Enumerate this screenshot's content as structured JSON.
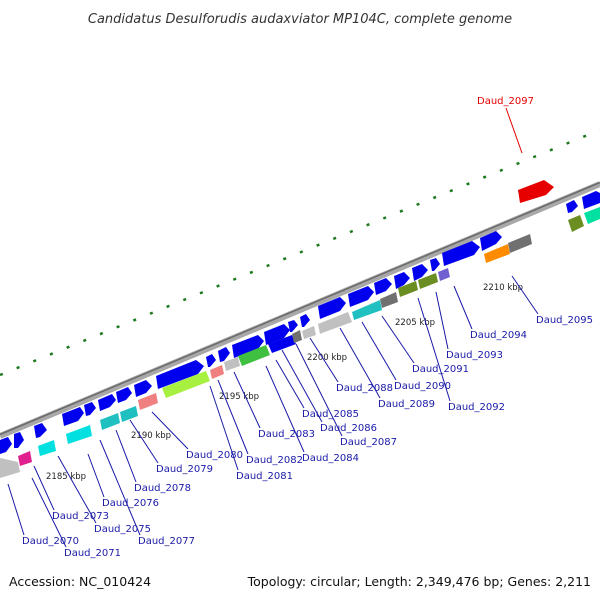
{
  "title": "Candidatus Desulforudis audaxviator MP104C, complete genome",
  "accession_text": "Accession: NC_010424",
  "summary_text": "Topology: circular; Length: 2,349,476 bp; Genes: 2,211",
  "colors": {
    "backbone": "#8a8a8a",
    "tick_major": "#1e7a1e",
    "label": "#1a1aa8",
    "highlight": "#e60000"
  },
  "kbp_labels": [
    "2185 kbp",
    "2190 kbp",
    "2195 kbp",
    "2200 kbp",
    "2205 kbp",
    "2210 kbp"
  ],
  "genes_top": [
    {
      "id": "Daud_2070",
      "color": "#c0c0c0"
    },
    {
      "id": "Daud_2071",
      "color": "#e0208c"
    },
    {
      "id": "Daud_2073",
      "color": "#00e0e0"
    },
    {
      "id": "Daud_2075",
      "color": "#00e0e0"
    },
    {
      "id": "Daud_2076",
      "color": "#20c0c0"
    },
    {
      "id": "Daud_2077",
      "color": "#20c0c0"
    },
    {
      "id": "Daud_2078",
      "color": "#f08080"
    },
    {
      "id": "Daud_2079",
      "color": "#a8f040"
    },
    {
      "id": "Daud_2080",
      "color": "#f08080"
    },
    {
      "id": "Daud_2081",
      "color": "#c0c0c0"
    },
    {
      "id": "Daud_2082",
      "color": "#40c040"
    },
    {
      "id": "Daud_2083",
      "color": "#0000ee"
    },
    {
      "id": "Daud_2084",
      "color": "#707070"
    },
    {
      "id": "Daud_2085",
      "color": "#c0c0c0"
    },
    {
      "id": "Daud_2086",
      "color": "#c0c0c0"
    },
    {
      "id": "Daud_2087",
      "color": "#c0c0c0"
    },
    {
      "id": "Daud_2088",
      "color": "#20c0c0"
    },
    {
      "id": "Daud_2089",
      "color": "#707070"
    },
    {
      "id": "Daud_2090",
      "color": "#6b8e23"
    },
    {
      "id": "Daud_2091",
      "color": "#6b8e23"
    },
    {
      "id": "Daud_2092",
      "color": "#7060d0"
    },
    {
      "id": "Daud_2093",
      "color": "#0000ee"
    },
    {
      "id": "Daud_2094",
      "color": "#ff8c00"
    },
    {
      "id": "Daud_2095",
      "color": "#707070"
    }
  ],
  "highlight_gene": {
    "id": "Daud_2097",
    "color": "#e60000"
  }
}
